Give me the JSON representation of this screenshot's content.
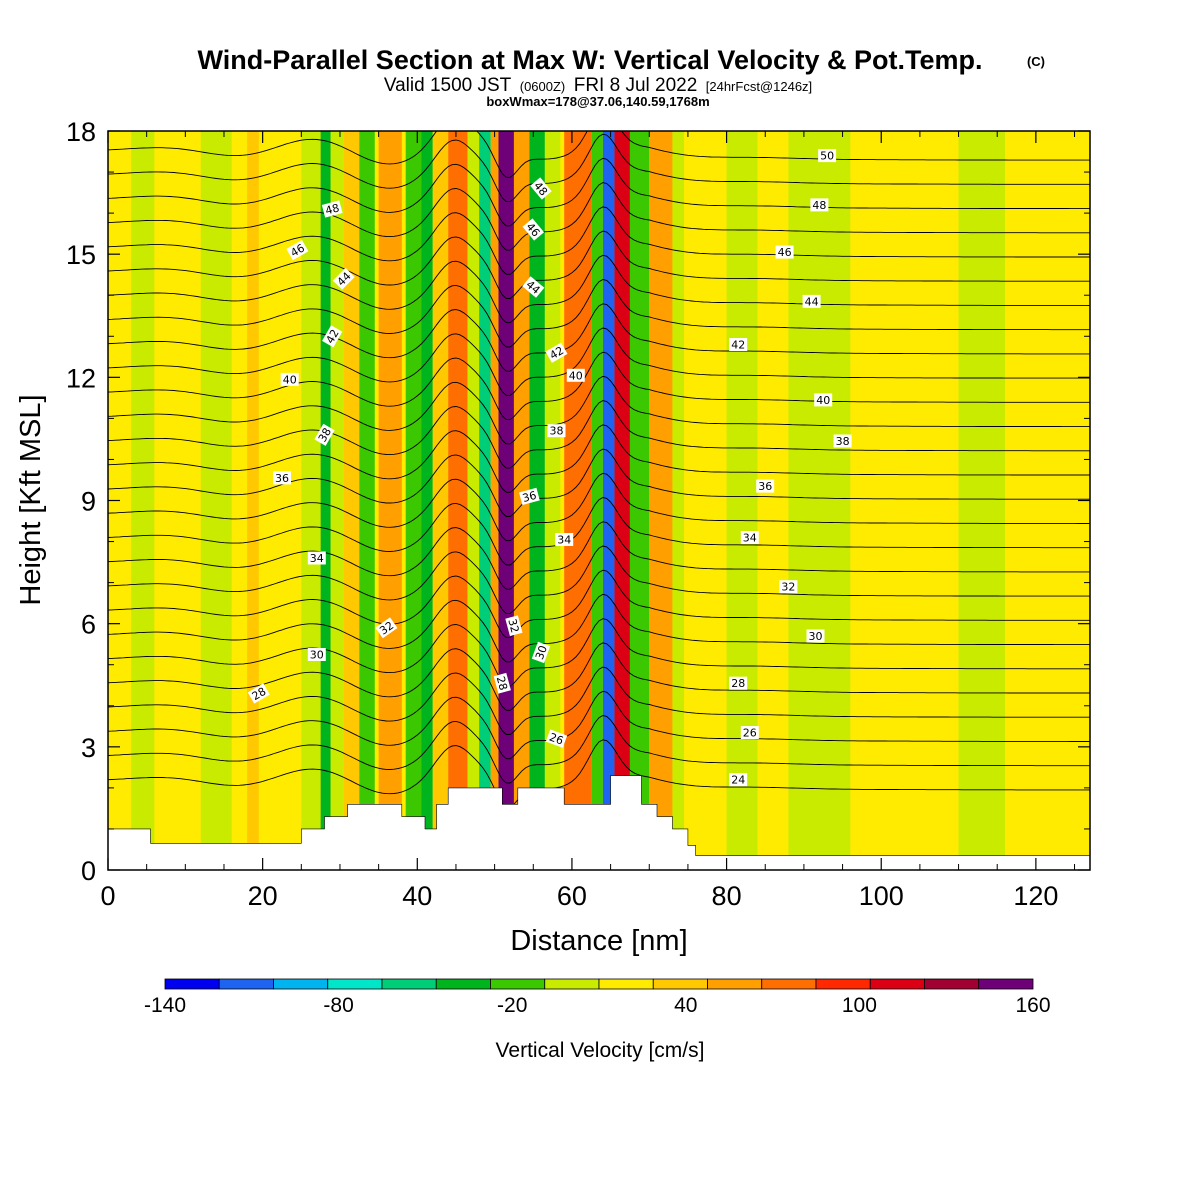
{
  "header": {
    "title": "Wind-Parallel Section at Max W: Vertical Velocity & Pot.Temp.",
    "copyright": "(C)",
    "valid_prefix": "Valid 1500 JST",
    "valid_utc": "(0600Z)",
    "valid_date": "FRI 8 Jul 2022",
    "forecast": "[24hrFcst@1246z]",
    "box_info": "boxWmax=178@37.06,140.59,1768m"
  },
  "chart_data": {
    "type": "heatmap",
    "title": "Wind-Parallel Section at Max W: Vertical Velocity & Pot.Temp.",
    "xlabel": "Distance [nm]",
    "ylabel": "Height [Kft MSL]",
    "xlim": [
      0,
      127
    ],
    "ylim": [
      0,
      18
    ],
    "xticks": [
      "0",
      "20",
      "40",
      "60",
      "80",
      "100",
      "120"
    ],
    "yticks": [
      "0",
      "3",
      "6",
      "9",
      "12",
      "15",
      "18"
    ],
    "colorbar": {
      "label": "Vertical Velocity [cm/s]",
      "tick_labels": [
        "-140",
        "-80",
        "-20",
        "40",
        "100",
        "160"
      ],
      "colors": [
        "#0000f0",
        "#1e64f0",
        "#00b4f0",
        "#00e6c8",
        "#00cd78",
        "#00b41e",
        "#3cc800",
        "#c8eb00",
        "#ffeb00",
        "#ffc800",
        "#ffa000",
        "#ff6e00",
        "#ff2800",
        "#dc0014",
        "#a00032",
        "#6e0078"
      ]
    },
    "velocity_bands": [
      {
        "x0": 0,
        "x1": 127,
        "value": 5
      },
      {
        "x0": 0,
        "x1": 10,
        "value": 0
      },
      {
        "x0": 3,
        "x1": 6,
        "value": -10
      },
      {
        "x0": 12,
        "x1": 16,
        "value": -15
      },
      {
        "x0": 18,
        "x1": 19.5,
        "value": 30
      },
      {
        "x0": 25,
        "x1": 27.5,
        "value": -20
      },
      {
        "x0": 27.5,
        "x1": 28.8,
        "value": -60
      },
      {
        "x0": 28.8,
        "x1": 30.5,
        "value": -15
      },
      {
        "x0": 30.5,
        "x1": 32.5,
        "value": 35
      },
      {
        "x0": 32.5,
        "x1": 34.5,
        "value": -25
      },
      {
        "x0": 35,
        "x1": 38,
        "value": 40
      },
      {
        "x0": 38.5,
        "x1": 40.5,
        "value": -25
      },
      {
        "x0": 40.5,
        "x1": 42,
        "value": -45
      },
      {
        "x0": 42,
        "x1": 44,
        "value": 30
      },
      {
        "x0": 44,
        "x1": 46.5,
        "value": 60
      },
      {
        "x0": 46.5,
        "x1": 48,
        "value": -10
      },
      {
        "x0": 48,
        "x1": 49.5,
        "value": -70
      },
      {
        "x0": 49.5,
        "x1": 50.5,
        "value": 50
      },
      {
        "x0": 50.5,
        "x1": 52.5,
        "value": 150
      },
      {
        "x0": 52.5,
        "x1": 54.5,
        "value": 40
      },
      {
        "x0": 54.5,
        "x1": 56.5,
        "value": -60
      },
      {
        "x0": 56.5,
        "x1": 58.5,
        "value": -15
      },
      {
        "x0": 59,
        "x1": 62.5,
        "value": 60
      },
      {
        "x0": 62.5,
        "x1": 64,
        "value": -40
      },
      {
        "x0": 64,
        "x1": 65.5,
        "value": -135
      },
      {
        "x0": 65.5,
        "x1": 67.5,
        "value": 100
      },
      {
        "x0": 67.5,
        "x1": 70,
        "value": -30
      },
      {
        "x0": 70,
        "x1": 73,
        "value": 50
      },
      {
        "x0": 73,
        "x1": 74.5,
        "value": -10
      },
      {
        "x0": 80,
        "x1": 84,
        "value": -15
      },
      {
        "x0": 88,
        "x1": 96,
        "value": -15
      },
      {
        "x0": 100,
        "x1": 104,
        "value": 10
      },
      {
        "x0": 110,
        "x1": 116,
        "value": -15
      }
    ],
    "terrain": [
      [
        0,
        1
      ],
      [
        5.5,
        1
      ],
      [
        5.5,
        0.65
      ],
      [
        25,
        0.65
      ],
      [
        25,
        1
      ],
      [
        28,
        1
      ],
      [
        28,
        1.3
      ],
      [
        31,
        1.3
      ],
      [
        31,
        1.6
      ],
      [
        38,
        1.6
      ],
      [
        38,
        1.3
      ],
      [
        41,
        1.3
      ],
      [
        41,
        1
      ],
      [
        42.5,
        1
      ],
      [
        42.5,
        1.6
      ],
      [
        44,
        1.6
      ],
      [
        44,
        2
      ],
      [
        51,
        2
      ],
      [
        51,
        1.6
      ],
      [
        53,
        1.6
      ],
      [
        53,
        2
      ],
      [
        59,
        2
      ],
      [
        59,
        1.6
      ],
      [
        65,
        1.6
      ],
      [
        65,
        2.3
      ],
      [
        69,
        2.3
      ],
      [
        69,
        1.6
      ],
      [
        71,
        1.6
      ],
      [
        71,
        1.3
      ],
      [
        73,
        1.3
      ],
      [
        73,
        1
      ],
      [
        75,
        1
      ],
      [
        75,
        0.6
      ],
      [
        76,
        0.6
      ],
      [
        76,
        0.35
      ],
      [
        127,
        0.35
      ],
      [
        127,
        0
      ]
    ],
    "theta_contours": [
      {
        "label": "24",
        "lx": 81.5,
        "ly": 2.2,
        "rot": 0
      },
      {
        "label": "26",
        "lx": 83,
        "ly": 3.35,
        "rot": 0
      },
      {
        "label": "28",
        "lx": 81.5,
        "ly": 4.55,
        "rot": 0
      },
      {
        "label": "30",
        "lx": 91.5,
        "ly": 5.7,
        "rot": 0
      },
      {
        "label": "32",
        "lx": 88,
        "ly": 6.9,
        "rot": 0
      },
      {
        "label": "34",
        "lx": 83,
        "ly": 8.1,
        "rot": 0
      },
      {
        "label": "36",
        "lx": 85,
        "ly": 9.35,
        "rot": 0
      },
      {
        "label": "38",
        "lx": 95,
        "ly": 10.45,
        "rot": 0
      },
      {
        "label": "40",
        "lx": 92.5,
        "ly": 11.45,
        "rot": 0
      },
      {
        "label": "42",
        "lx": 81.5,
        "ly": 12.8,
        "rot": 0
      },
      {
        "label": "44",
        "lx": 91,
        "ly": 13.85,
        "rot": 0
      },
      {
        "label": "46",
        "lx": 87.5,
        "ly": 15.05,
        "rot": 0
      },
      {
        "label": "48",
        "lx": 92,
        "ly": 16.2,
        "rot": 0
      },
      {
        "label": "50",
        "lx": 93,
        "ly": 17.4,
        "rot": 0
      }
    ],
    "contour_labels_west": [
      {
        "label": "28",
        "x": 19.5,
        "y": 4.3,
        "rot": -30
      },
      {
        "label": "30",
        "x": 27,
        "y": 5.25,
        "rot": 0
      },
      {
        "label": "32",
        "x": 36,
        "y": 5.9,
        "rot": -35
      },
      {
        "label": "34",
        "x": 27,
        "y": 7.6,
        "rot": 0
      },
      {
        "label": "36",
        "x": 22.5,
        "y": 9.55,
        "rot": 0
      },
      {
        "label": "38",
        "x": 28,
        "y": 10.6,
        "rot": -60
      },
      {
        "label": "40",
        "x": 23.5,
        "y": 11.95,
        "rot": 0
      },
      {
        "label": "42",
        "x": 29,
        "y": 13,
        "rot": -60
      },
      {
        "label": "44",
        "x": 30.5,
        "y": 14.4,
        "rot": -45
      },
      {
        "label": "46",
        "x": 24.5,
        "y": 15.1,
        "rot": -30
      },
      {
        "label": "48",
        "x": 29,
        "y": 16.1,
        "rot": -15
      },
      {
        "label": "48",
        "x": 56,
        "y": 16.6,
        "rot": 50
      },
      {
        "label": "46",
        "x": 55,
        "y": 15.6,
        "rot": 50
      },
      {
        "label": "44",
        "x": 55,
        "y": 14.2,
        "rot": 40
      },
      {
        "label": "42",
        "x": 58,
        "y": 12.6,
        "rot": -30
      },
      {
        "label": "40",
        "x": 60.5,
        "y": 12.05,
        "rot": 0
      },
      {
        "label": "38",
        "x": 58,
        "y": 10.7,
        "rot": 0
      },
      {
        "label": "36",
        "x": 54.5,
        "y": 9.1,
        "rot": -15
      },
      {
        "label": "34",
        "x": 59,
        "y": 8.05,
        "rot": 0
      },
      {
        "label": "32",
        "x": 52.5,
        "y": 5.95,
        "rot": 75
      },
      {
        "label": "30",
        "x": 56,
        "y": 5.3,
        "rot": -70
      },
      {
        "label": "28",
        "x": 51,
        "y": 4.55,
        "rot": 75
      },
      {
        "label": "26",
        "x": 58,
        "y": 3.2,
        "rot": 20
      }
    ]
  }
}
